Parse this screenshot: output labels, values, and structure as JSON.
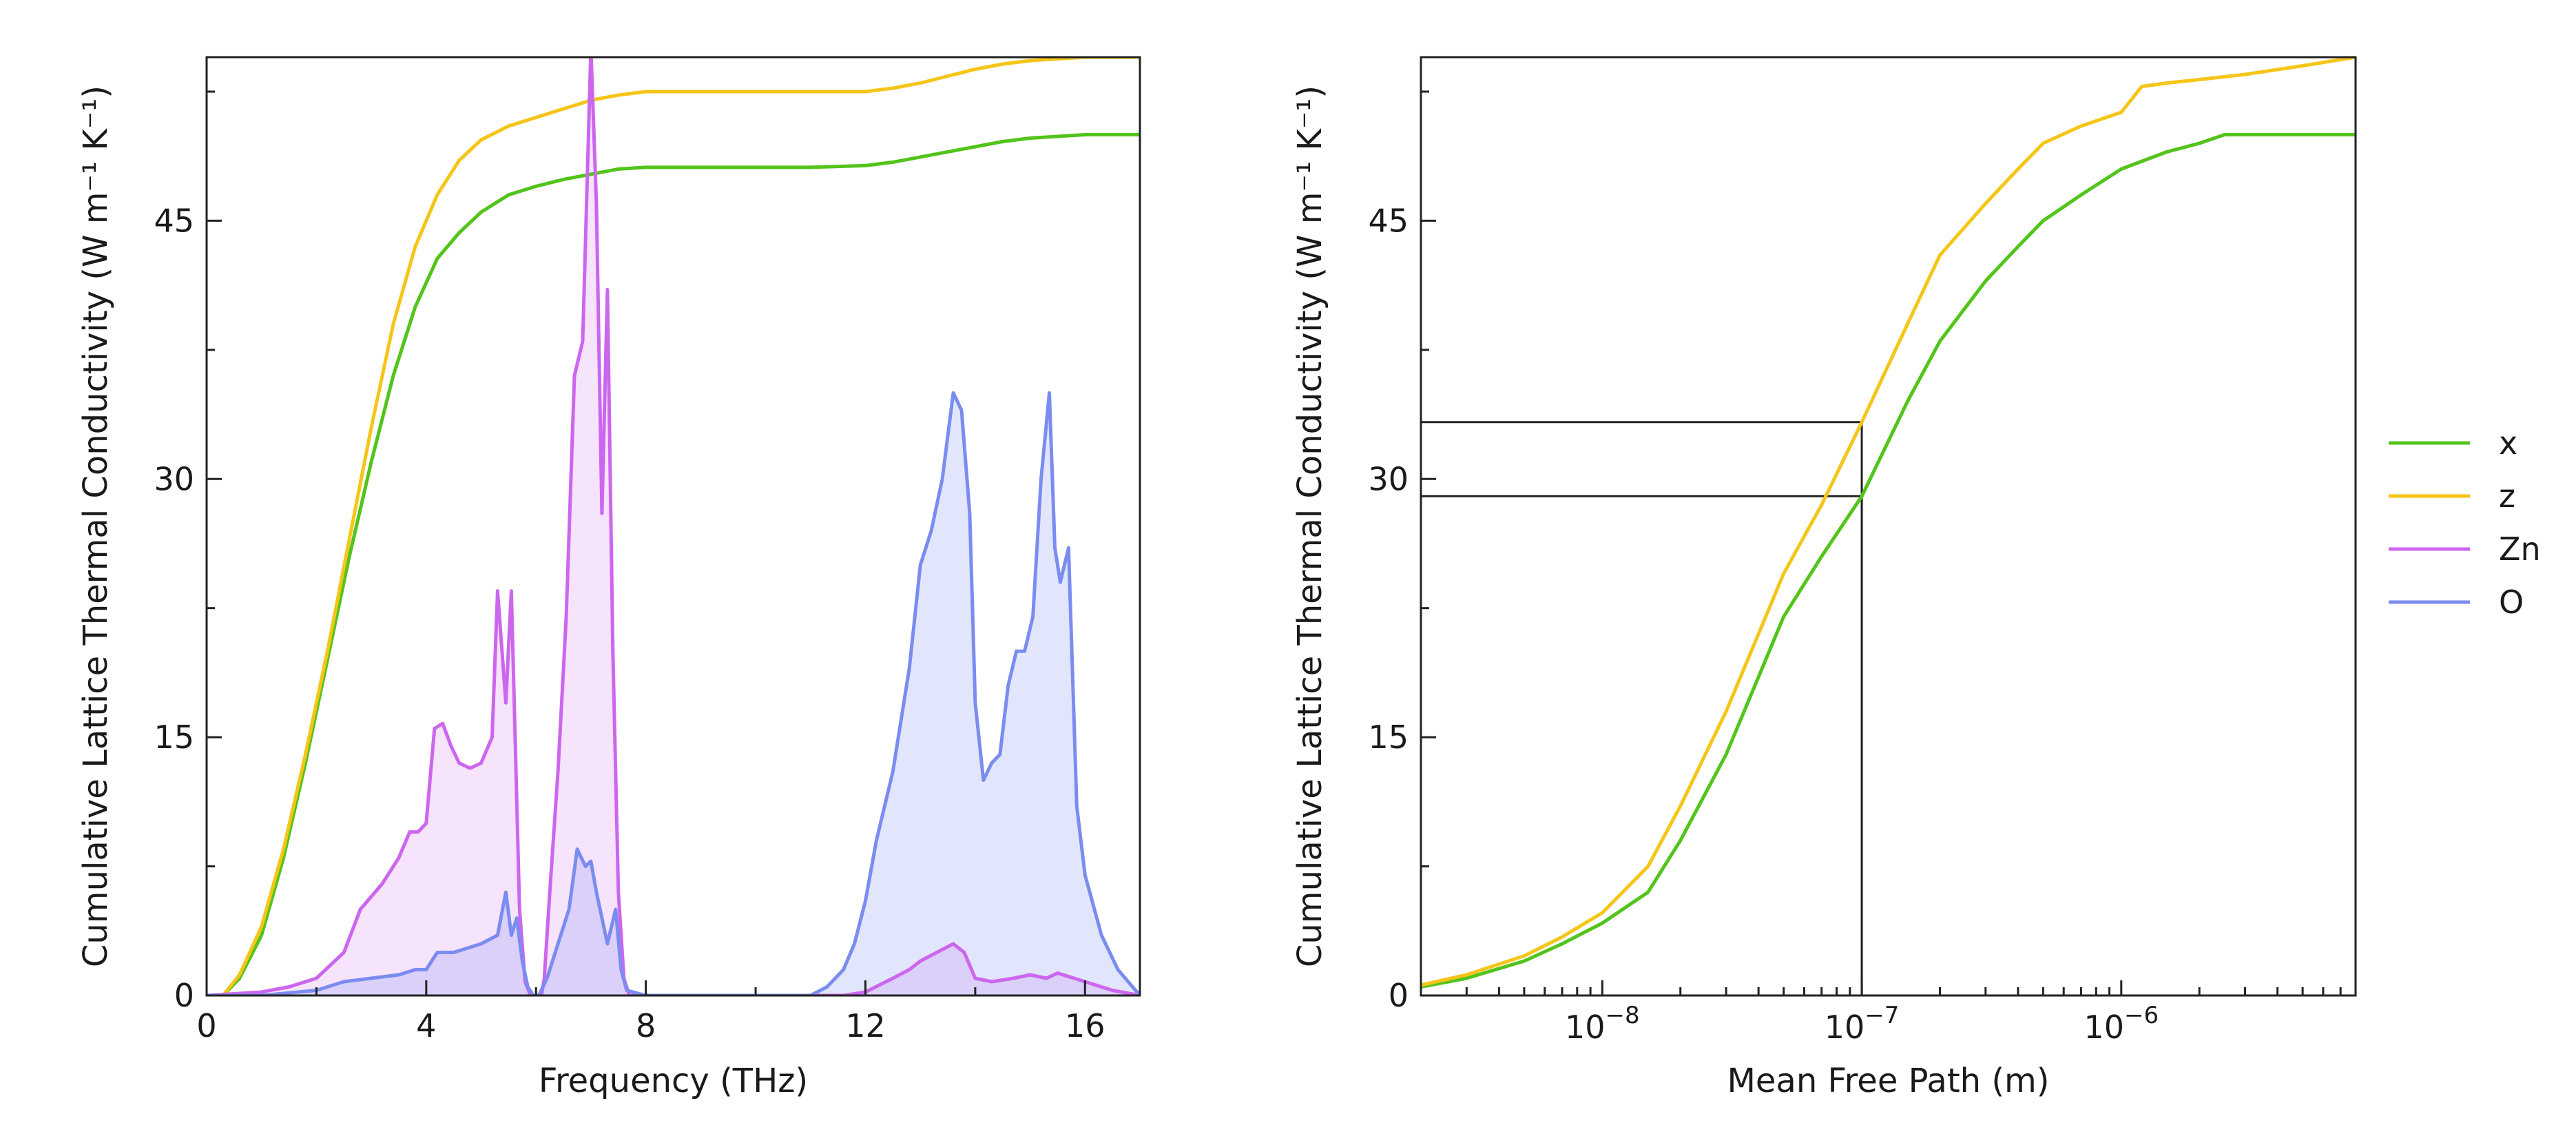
{
  "chart_data": [
    {
      "type": "line",
      "xlabel": "Frequency (THz)",
      "ylabel": "Cumulative Lattice Thermal Conductivity (W m⁻¹ K⁻¹)",
      "xlim": [
        0,
        17
      ],
      "ylim": [
        0,
        54.5
      ],
      "xticks": [
        0,
        4,
        8,
        12,
        16
      ],
      "xtick_labels": [
        "0",
        "4",
        "8",
        "12",
        "16"
      ],
      "yticks": [
        0,
        15,
        30,
        45
      ],
      "ytick_labels": [
        "0",
        "15",
        "30",
        "45"
      ],
      "grid": false,
      "series": [
        {
          "name": "x",
          "color": "#52c41a",
          "style": "line",
          "x": [
            0.3,
            0.6,
            1.0,
            1.4,
            1.8,
            2.2,
            2.6,
            3.0,
            3.4,
            3.8,
            4.2,
            4.6,
            5.0,
            5.5,
            6.0,
            6.5,
            7.0,
            7.5,
            8.0,
            9.0,
            10.0,
            11.0,
            12.0,
            12.5,
            13.0,
            13.5,
            14.0,
            14.5,
            15.0,
            15.5,
            16.0,
            17.0
          ],
          "y": [
            0.0,
            1.0,
            3.5,
            8.0,
            13.5,
            19.5,
            25.5,
            31.0,
            36.0,
            40.0,
            42.8,
            44.3,
            45.5,
            46.5,
            47.0,
            47.4,
            47.7,
            48.0,
            48.1,
            48.1,
            48.1,
            48.1,
            48.2,
            48.4,
            48.7,
            49.0,
            49.3,
            49.6,
            49.8,
            49.9,
            50.0,
            50.0
          ]
        },
        {
          "name": "z",
          "color": "#f5c518",
          "style": "line",
          "x": [
            0.3,
            0.6,
            1.0,
            1.4,
            1.8,
            2.2,
            2.6,
            3.0,
            3.4,
            3.8,
            4.2,
            4.6,
            5.0,
            5.5,
            6.0,
            6.5,
            7.0,
            7.5,
            8.0,
            9.0,
            10.0,
            11.0,
            12.0,
            12.5,
            13.0,
            13.5,
            14.0,
            14.5,
            15.0,
            15.5,
            16.0,
            17.0
          ],
          "y": [
            0.0,
            1.2,
            4.0,
            8.5,
            14.0,
            20.0,
            26.5,
            33.0,
            39.0,
            43.5,
            46.5,
            48.5,
            49.7,
            50.5,
            51.0,
            51.5,
            52.0,
            52.3,
            52.5,
            52.5,
            52.5,
            52.5,
            52.5,
            52.7,
            53.0,
            53.4,
            53.8,
            54.1,
            54.3,
            54.4,
            54.5,
            54.5
          ]
        },
        {
          "name": "Zn",
          "color": "#cc66ee",
          "fill": "rgba(204,102,238,0.18)",
          "style": "filled",
          "x": [
            0.0,
            1.0,
            1.5,
            2.0,
            2.5,
            2.8,
            3.2,
            3.5,
            3.7,
            3.85,
            4.0,
            4.15,
            4.3,
            4.45,
            4.6,
            4.8,
            5.0,
            5.2,
            5.3,
            5.45,
            5.55,
            5.62,
            5.7,
            5.8,
            5.9,
            6.0,
            6.1,
            6.15,
            6.25,
            6.4,
            6.55,
            6.7,
            6.85,
            7.0,
            7.1,
            7.2,
            7.3,
            7.4,
            7.5,
            7.6,
            7.7,
            7.8,
            8.0,
            9.0,
            10.0,
            11.0,
            11.6,
            12.0,
            12.5,
            12.8,
            13.0,
            13.3,
            13.6,
            13.8,
            14.0,
            14.3,
            14.7,
            15.0,
            15.3,
            15.5,
            15.8,
            16.0,
            16.5,
            17.0
          ],
          "y": [
            0.0,
            0.2,
            0.5,
            1.0,
            2.5,
            5.0,
            6.5,
            8.0,
            9.5,
            9.5,
            10.0,
            15.5,
            15.8,
            14.5,
            13.5,
            13.2,
            13.5,
            15.0,
            23.5,
            17.0,
            23.5,
            15.0,
            5.0,
            0.8,
            0.0,
            0.0,
            0.0,
            1.0,
            6.0,
            13.0,
            22.0,
            36.0,
            38.0,
            55.0,
            46.0,
            28.0,
            41.0,
            20.0,
            6.0,
            1.0,
            0.0,
            0.0,
            0.0,
            0.0,
            0.0,
            0.0,
            0.0,
            0.2,
            1.0,
            1.5,
            2.0,
            2.5,
            3.0,
            2.5,
            1.0,
            0.8,
            1.0,
            1.2,
            1.0,
            1.3,
            1.0,
            0.8,
            0.3,
            0.0
          ]
        },
        {
          "name": "O",
          "color": "#7b8cf0",
          "fill": "rgba(123,140,240,0.22)",
          "style": "filled",
          "x": [
            0.0,
            1.0,
            2.0,
            2.5,
            3.0,
            3.5,
            3.8,
            4.0,
            4.2,
            4.5,
            5.0,
            5.3,
            5.45,
            5.55,
            5.65,
            5.75,
            5.85,
            5.95,
            6.05,
            6.2,
            6.4,
            6.6,
            6.75,
            6.9,
            7.0,
            7.1,
            7.2,
            7.3,
            7.45,
            7.55,
            7.65,
            8.0,
            9.0,
            10.0,
            11.0,
            11.3,
            11.6,
            11.8,
            12.0,
            12.2,
            12.5,
            12.8,
            13.0,
            13.2,
            13.4,
            13.6,
            13.75,
            13.9,
            14.0,
            14.15,
            14.3,
            14.45,
            14.6,
            14.75,
            14.9,
            15.05,
            15.2,
            15.35,
            15.45,
            15.55,
            15.7,
            15.85,
            16.0,
            16.3,
            16.6,
            17.0
          ],
          "y": [
            0.0,
            0.0,
            0.3,
            0.8,
            1.0,
            1.2,
            1.5,
            1.5,
            2.5,
            2.5,
            3.0,
            3.5,
            6.0,
            3.5,
            4.5,
            2.0,
            0.5,
            0.0,
            0.0,
            1.0,
            3.0,
            5.0,
            8.5,
            7.5,
            7.8,
            6.0,
            4.5,
            3.0,
            5.0,
            1.5,
            0.3,
            0.0,
            0.0,
            0.0,
            0.0,
            0.5,
            1.5,
            3.0,
            5.5,
            9.0,
            13.0,
            19.0,
            25.0,
            27.0,
            30.0,
            35.0,
            34.0,
            28.0,
            17.0,
            12.5,
            13.5,
            14.0,
            18.0,
            20.0,
            20.0,
            22.0,
            30.0,
            35.0,
            26.0,
            24.0,
            26.0,
            11.0,
            7.0,
            3.5,
            1.5,
            0.0
          ]
        }
      ]
    },
    {
      "type": "line",
      "xlabel": "Mean Free Path (m)",
      "ylabel": "Cumulative Lattice Thermal Conductivity (W m⁻¹ K⁻¹)",
      "xscale": "log",
      "xlim": [
        2e-09,
        8e-06
      ],
      "ylim": [
        0,
        54.5
      ],
      "xticks": [
        1e-08,
        1e-07,
        1e-06
      ],
      "xtick_labels": [
        {
          "base": "10",
          "exp": "−8"
        },
        {
          "base": "10",
          "exp": "−7"
        },
        {
          "base": "10",
          "exp": "−6"
        }
      ],
      "yticks": [
        0,
        15,
        30,
        45
      ],
      "ytick_labels": [
        "0",
        "15",
        "30",
        "45"
      ],
      "grid": false,
      "reference_lines": [
        {
          "x": 1e-07,
          "y": 29.0
        },
        {
          "x": 1e-07,
          "y": 33.3
        }
      ],
      "legend": {
        "position": "right"
      },
      "series": [
        {
          "name": "x",
          "color": "#52c41a",
          "x": [
            2e-09,
            3e-09,
            5e-09,
            7e-09,
            1e-08,
            1.5e-08,
            2e-08,
            3e-08,
            4e-08,
            5e-08,
            7e-08,
            1e-07,
            1.5e-07,
            2e-07,
            3e-07,
            4e-07,
            5e-07,
            7e-07,
            1e-06,
            1.5e-06,
            2e-06,
            2.5e-06,
            3e-06,
            5e-06,
            8e-06
          ],
          "y": [
            0.5,
            1.0,
            2.0,
            3.0,
            4.2,
            6.0,
            9.0,
            14.0,
            18.5,
            22.0,
            25.5,
            29.0,
            34.5,
            38.0,
            41.5,
            43.5,
            45.0,
            46.5,
            48.0,
            49.0,
            49.5,
            50.0,
            50.0,
            50.0,
            50.0
          ]
        },
        {
          "name": "z",
          "color": "#f5c518",
          "x": [
            2e-09,
            3e-09,
            5e-09,
            7e-09,
            1e-08,
            1.5e-08,
            2e-08,
            3e-08,
            4e-08,
            5e-08,
            7e-08,
            1e-07,
            1.5e-07,
            2e-07,
            3e-07,
            4e-07,
            5e-07,
            7e-07,
            1e-06,
            1.2e-06,
            1.5e-06,
            2e-06,
            3e-06,
            5e-06,
            8e-06
          ],
          "y": [
            0.6,
            1.2,
            2.3,
            3.4,
            4.8,
            7.5,
            11.0,
            16.5,
            21.0,
            24.5,
            28.5,
            33.3,
            39.0,
            43.0,
            46.0,
            48.0,
            49.5,
            50.5,
            51.3,
            52.8,
            53.0,
            53.2,
            53.5,
            54.0,
            54.5
          ]
        }
      ]
    }
  ]
}
